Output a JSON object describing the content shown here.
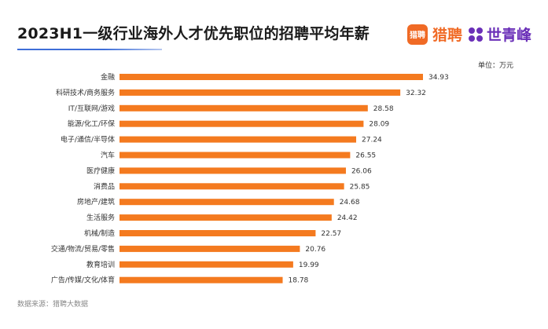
{
  "title": "2023H1一级行业海外人才优先职位的招聘平均年薪",
  "brand": {
    "badge_text": "猎聘",
    "name": "猎聘",
    "partner": "世青峰",
    "badge_color": "#f06a25",
    "partner_color": "#6a2fb8"
  },
  "unit_label": "单位：万元",
  "source": "数据来源：猎聘大数据",
  "colors": {
    "bar": "#f47a1f",
    "title_rule": "#3f6fd8"
  },
  "chart_data": {
    "type": "bar",
    "orientation": "horizontal",
    "title": "2023H1一级行业海外人才优先职位的招聘平均年薪",
    "unit": "万元",
    "categories": [
      "金融",
      "科研技术/商务服务",
      "IT/互联网/游戏",
      "能源/化工/环保",
      "电子/通信/半导体",
      "汽车",
      "医疗健康",
      "消费品",
      "房地产/建筑",
      "生活服务",
      "机械/制造",
      "交通/物流/贸易/零售",
      "教育培训",
      "广告/传媒/文化/体育"
    ],
    "values": [
      34.93,
      32.32,
      28.58,
      28.09,
      27.24,
      26.55,
      26.06,
      25.85,
      24.68,
      24.42,
      22.57,
      20.76,
      19.99,
      18.78
    ],
    "value_labels": [
      "34.93",
      "32.32",
      "28.58",
      "28.09",
      "27.24",
      "26.55",
      "26.06",
      "25.85",
      "24.68",
      "24.42",
      "22.57",
      "20.76",
      "19.99",
      "18.78"
    ],
    "xlim": [
      0,
      40
    ],
    "grid": false,
    "legend": "none"
  }
}
